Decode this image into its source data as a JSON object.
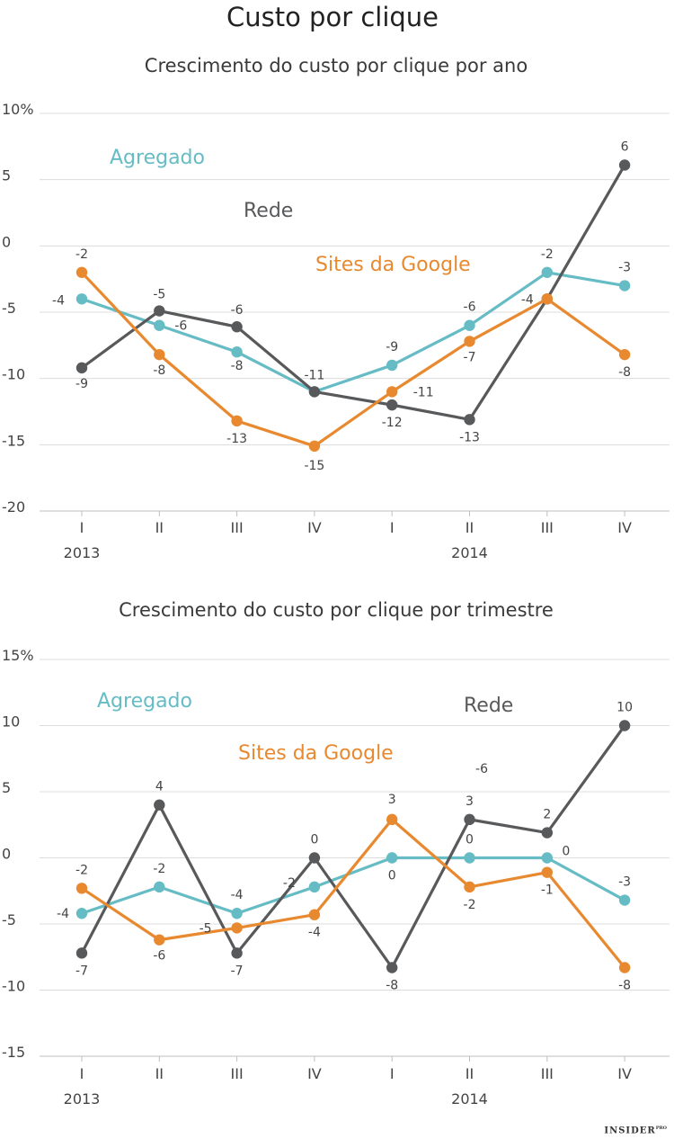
{
  "title": "Custo por clique",
  "brand": {
    "name": "INSIDER",
    "suffix": "PRO"
  },
  "colors": {
    "agregado": "#66bcc4",
    "rede": "#58595b",
    "google": "#e8892f"
  },
  "chart_data": [
    {
      "type": "line",
      "title": "Crescimento do custo por clique por ano",
      "categories": [
        "I",
        "II",
        "III",
        "IV",
        "I",
        "II",
        "III",
        "IV"
      ],
      "years": [
        "2013",
        "2014"
      ],
      "yticks": [
        "10%",
        "5",
        "0",
        "-5",
        "-10",
        "-15",
        "-20"
      ],
      "ylim": [
        -20,
        10
      ],
      "grid": true,
      "series": [
        {
          "name": "Agregado",
          "key": "agregado",
          "values": [
            -4,
            -6,
            -8,
            -11,
            -9,
            -6,
            -2,
            -3
          ],
          "labels": [
            "-4",
            "-6",
            "-8",
            "-11",
            "-9",
            "-6",
            "-2",
            "-3"
          ]
        },
        {
          "name": "Rede",
          "key": "rede",
          "values": [
            -9.2,
            -4.9,
            -6.1,
            -11,
            -12,
            -13.1,
            -4,
            6.1
          ],
          "labels": [
            "-9",
            "-5",
            "-6",
            "",
            "-12",
            "-13",
            "",
            "6"
          ]
        },
        {
          "name": "Sites da Google",
          "key": "google",
          "values": [
            -2,
            -8.2,
            -13.2,
            -15.1,
            -11,
            -7.2,
            -4,
            -8.2
          ],
          "labels": [
            "-2",
            "-8",
            "-13",
            "-15",
            "-11",
            "-7",
            "-4",
            "-8"
          ]
        }
      ]
    },
    {
      "type": "line",
      "title": "Crescimento do custo por clique por trimestre",
      "categories": [
        "I",
        "II",
        "III",
        "IV",
        "I",
        "II",
        "III",
        "IV"
      ],
      "years": [
        "2013",
        "2014"
      ],
      "yticks": [
        "15%",
        "10",
        "5",
        "0",
        "-5",
        "-10",
        "-15"
      ],
      "ylim": [
        -15,
        15
      ],
      "grid": true,
      "series": [
        {
          "name": "Agregado",
          "key": "agregado",
          "values": [
            -4.2,
            -2.2,
            -4.2,
            -2.2,
            0,
            0,
            0,
            -3.2
          ],
          "labels": [
            "-4",
            "-2",
            "-4",
            "-2",
            "0",
            "0",
            "0",
            "-3"
          ]
        },
        {
          "name": "Rede",
          "key": "rede",
          "values": [
            -7.2,
            4,
            -7.2,
            0,
            -8.3,
            2.9,
            1.9,
            10
          ],
          "labels": [
            "-7",
            "4",
            "-7",
            "0",
            "-8",
            "3",
            "2",
            "10"
          ]
        },
        {
          "name": "Sites da Google",
          "key": "google",
          "values": [
            -2.3,
            -6.2,
            -5.3,
            -4.3,
            2.9,
            -2.2,
            -1.1,
            -8.3
          ],
          "labels": [
            "-2",
            "-6",
            "-5",
            "-4",
            "3",
            "-2",
            "-1",
            "-8"
          ]
        }
      ],
      "extra_labels": [
        "-6"
      ]
    }
  ]
}
